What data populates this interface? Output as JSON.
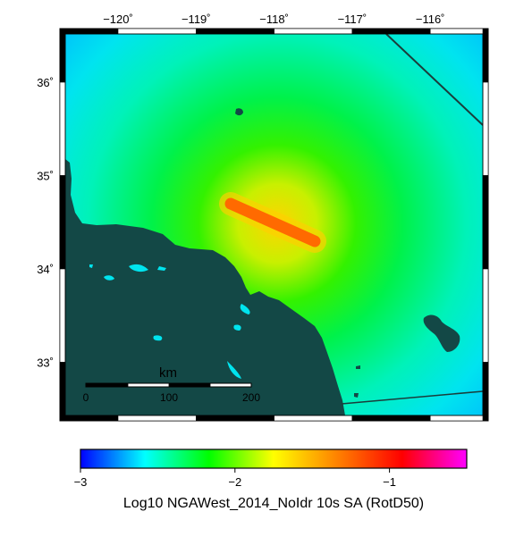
{
  "map": {
    "lon_ticks": [
      {
        "value": -120,
        "label": "−120˚"
      },
      {
        "value": -119,
        "label": "−119˚"
      },
      {
        "value": -118,
        "label": "−118˚"
      },
      {
        "value": -117,
        "label": "−117˚"
      },
      {
        "value": -116,
        "label": "−116˚"
      }
    ],
    "lat_ticks": [
      {
        "value": 36,
        "label": "36˚"
      },
      {
        "value": 35,
        "label": "35˚"
      },
      {
        "value": 34,
        "label": "34˚"
      },
      {
        "value": 33,
        "label": "33˚"
      }
    ],
    "land_color": "#134846",
    "border_color": "#1a3d3b"
  },
  "scale_bar": {
    "title": "km",
    "labels": [
      "0",
      "100",
      "200"
    ]
  },
  "colorbar": {
    "min": -3,
    "max": -0.5,
    "tick_labels": [
      "−3",
      "−2",
      "−1"
    ],
    "tick_values": [
      -3,
      -2,
      -1
    ],
    "title": "Log10 NGAWest_2014_NoIdr 10s SA (RotD50)",
    "colors": [
      "#0000ff",
      "#00ffff",
      "#00ff00",
      "#ffff00",
      "#ff8000",
      "#ff0000",
      "#ff00ff"
    ]
  }
}
